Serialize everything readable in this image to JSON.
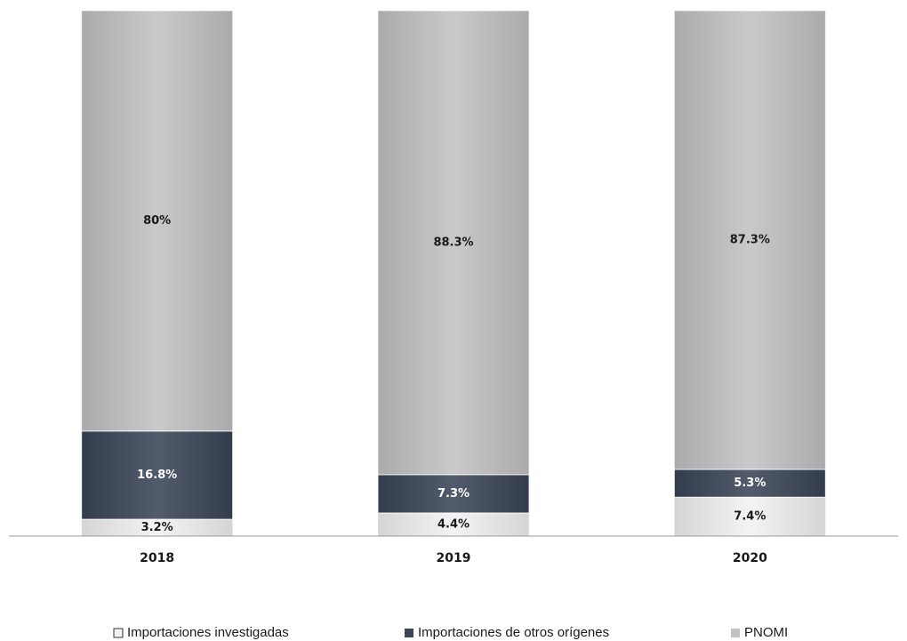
{
  "chart_data": {
    "type": "stacked_bar",
    "categories": [
      "2018",
      "2019",
      "2020"
    ],
    "series": [
      {
        "name": "Importaciones investigadas",
        "color": "#f2f2f2",
        "values": [
          3.2,
          4.4,
          7.4
        ],
        "value_labels": [
          "3.2%",
          "4.4%",
          "7.4%"
        ]
      },
      {
        "name": "Importaciones de otros orígenes",
        "color": "#3b4557",
        "values": [
          16.8,
          7.3,
          5.3
        ],
        "value_labels": [
          "16.8%",
          "7.3%",
          "5.3%"
        ]
      },
      {
        "name": "PNOMI",
        "color": "#c2c2c4",
        "values": [
          80,
          88.3,
          87.3
        ],
        "value_labels": [
          "80%",
          "88.3%",
          "87.3%"
        ]
      }
    ],
    "ylim": [
      0,
      100
    ],
    "legend": "bottom"
  }
}
